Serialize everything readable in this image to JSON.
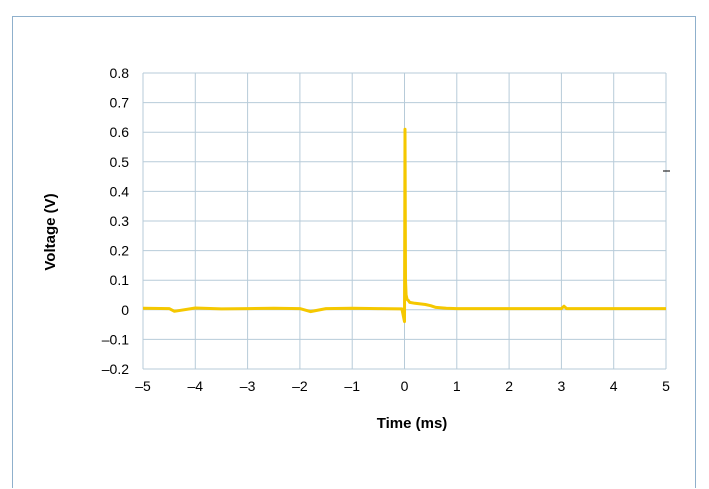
{
  "chart_data": {
    "type": "line",
    "title": "",
    "xlabel": "Time (ms)",
    "ylabel": "Voltage (V)",
    "xlim": [
      -5,
      5
    ],
    "ylim": [
      -0.2,
      0.8
    ],
    "x_ticks": [
      -5,
      -4,
      -3,
      -2,
      -1,
      0,
      1,
      2,
      3,
      4,
      5
    ],
    "y_ticks": [
      -0.2,
      -0.1,
      0,
      0.1,
      0.2,
      0.3,
      0.4,
      0.5,
      0.6,
      0.7,
      0.8
    ],
    "x_tick_labels": [
      "–5",
      "–4",
      "–3",
      "–2",
      "–1",
      "0",
      "1",
      "2",
      "3",
      "4",
      "5"
    ],
    "y_tick_labels": [
      "–0.2",
      "–0.1",
      "0",
      "0.1",
      "0.2",
      "0.3",
      "0.4",
      "0.5",
      "0.6",
      "0.7",
      "0.8"
    ],
    "grid": true,
    "series_color": "#f5c800",
    "grid_color": "#b7cbd9",
    "series": [
      {
        "x": [
          -5,
          -4.5,
          -4.4,
          -4,
          -3.5,
          -3,
          -2.5,
          -2,
          -1.8,
          -1.5,
          -1,
          -0.5,
          -0.05,
          0,
          0.01,
          0.02,
          0.03,
          0.05,
          0.08,
          0.1,
          0.2,
          0.3,
          0.4,
          0.5,
          0.6,
          0.8,
          1,
          1.5,
          2,
          2.5,
          3,
          3.05,
          3.1,
          3.5,
          4,
          4.5,
          5
        ],
        "y": [
          0.005,
          0.004,
          -0.005,
          0.006,
          0.003,
          0.004,
          0.005,
          0.004,
          -0.006,
          0.004,
          0.005,
          0.004,
          0.003,
          -0.04,
          0.61,
          0.1,
          0.05,
          0.035,
          0.03,
          0.025,
          0.022,
          0.02,
          0.018,
          0.014,
          0.008,
          0.005,
          0.004,
          0.004,
          0.004,
          0.004,
          0.004,
          0.012,
          0.004,
          0.004,
          0.004,
          0.004,
          0.004
        ]
      }
    ]
  }
}
